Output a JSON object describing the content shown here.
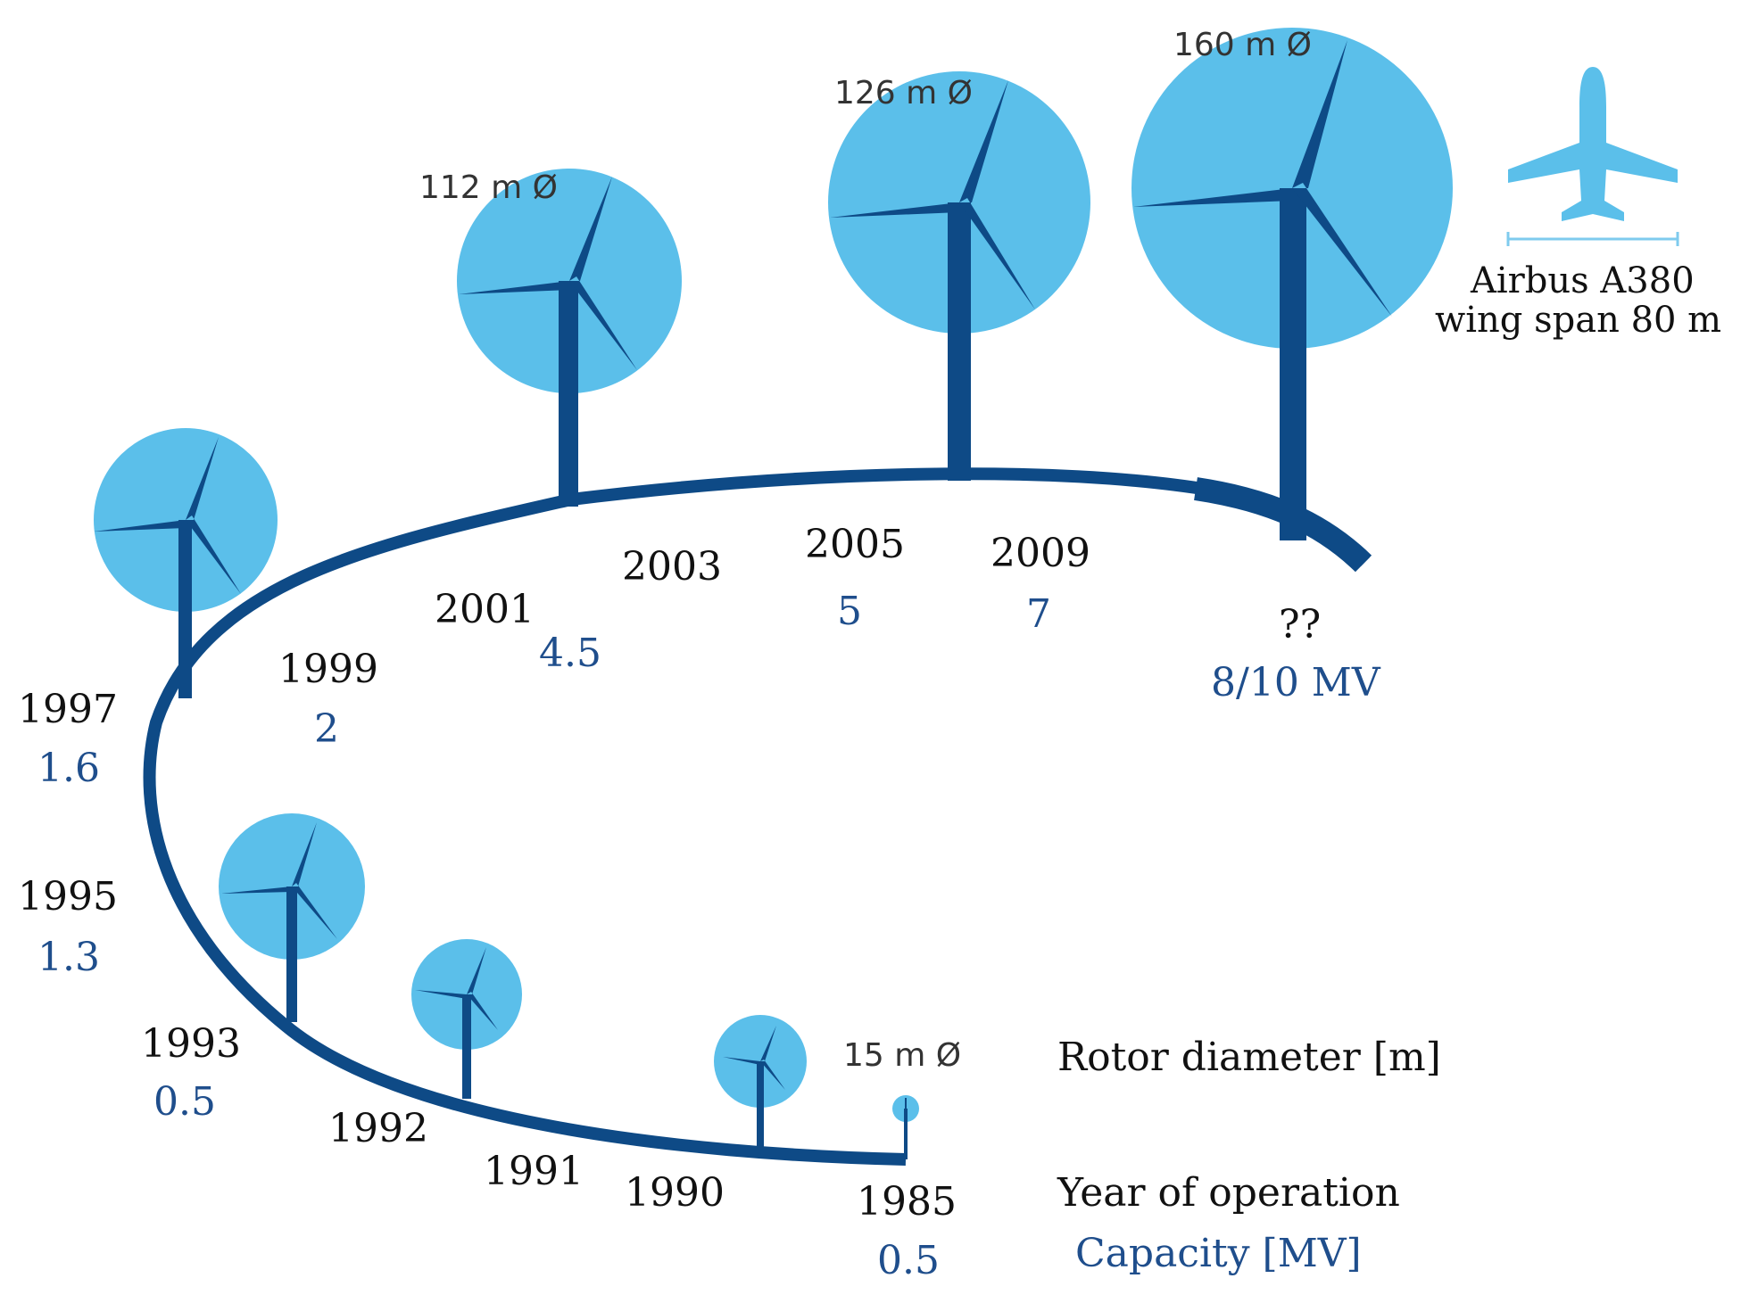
{
  "colors": {
    "rotor_disc": "#5bbfea",
    "turbine": "#0e4a86",
    "timeline": "#0e4a86",
    "capacity_text": "#1f4e8c",
    "airplane": "#5bbfea"
  },
  "turbines": [
    {
      "year": "1985",
      "capacity": "0.5",
      "diameter_label": "15 m Ø"
    },
    {
      "year": "1990",
      "capacity": "",
      "diameter_label": ""
    },
    {
      "year": "1991",
      "capacity": "",
      "diameter_label": ""
    },
    {
      "year": "1992",
      "capacity": "",
      "diameter_label": ""
    },
    {
      "year": "1993",
      "capacity": "0.5",
      "diameter_label": ""
    },
    {
      "year": "1995",
      "capacity": "1.3",
      "diameter_label": ""
    },
    {
      "year": "1997",
      "capacity": "1.6",
      "diameter_label": ""
    },
    {
      "year": "1999",
      "capacity": "2",
      "diameter_label": ""
    },
    {
      "year": "2001",
      "capacity": "4.5",
      "diameter_label": "112 m Ø"
    },
    {
      "year": "2003",
      "capacity": "",
      "diameter_label": ""
    },
    {
      "year": "2005",
      "capacity": "5",
      "diameter_label": "126 m Ø"
    },
    {
      "year": "2009",
      "capacity": "7",
      "diameter_label": ""
    },
    {
      "year": "??",
      "capacity": "8/10 MV",
      "diameter_label": "160 m Ø"
    }
  ],
  "legend": {
    "rotor_diameter": "Rotor diameter [m]",
    "year_of_operation": "Year of operation",
    "capacity": "Capacity [MV]"
  },
  "reference": {
    "line1": "Airbus A380",
    "line2": "wing span 80 m",
    "icon": "airplane-icon"
  }
}
